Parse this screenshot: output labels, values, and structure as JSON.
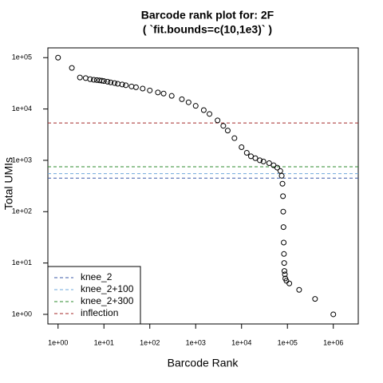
{
  "chart_data": {
    "type": "scatter",
    "title": "Barcode rank plot for: 2F",
    "subtitle": "( `fit.bounds=c(10,1e3)` )",
    "x_label": "Barcode Rank",
    "y_label": "Total UMIs",
    "log_x": true,
    "log_y": true,
    "color": "#000000",
    "x": [
      1,
      2,
      3,
      4,
      5,
      6,
      7,
      8,
      9,
      10,
      12,
      14,
      17,
      20,
      25,
      30,
      40,
      50,
      70,
      100,
      150,
      200,
      300,
      500,
      700,
      1000,
      1500,
      2000,
      3000,
      4000,
      5000,
      7000,
      10000,
      13000,
      16000,
      20000,
      25000,
      30000,
      40000,
      50000,
      60000,
      70000,
      75000,
      78000,
      80000,
      81000,
      82000,
      83000,
      84000,
      85000,
      86000,
      88000,
      90000,
      95000,
      110000,
      180000,
      400000,
      1000000
    ],
    "y": [
      100000,
      63000,
      41000,
      40000,
      38000,
      37000,
      36500,
      36000,
      35500,
      35000,
      34000,
      33000,
      32000,
      31000,
      30000,
      29000,
      27500,
      26500,
      25000,
      23000,
      21000,
      20000,
      18000,
      15500,
      13500,
      11500,
      9500,
      8000,
      6000,
      4700,
      3800,
      2700,
      1800,
      1400,
      1200,
      1100,
      1000,
      950,
      880,
      800,
      720,
      620,
      500,
      350,
      200,
      100,
      50,
      25,
      15,
      10,
      7,
      6,
      5,
      4.5,
      4,
      3,
      2,
      1
    ],
    "xlim": [
      0.6,
      3500000
    ],
    "ylim": [
      0.65,
      155000
    ],
    "xticks": [
      {
        "value": 1,
        "label": "1e+00"
      },
      {
        "value": 10,
        "label": "1e+01"
      },
      {
        "value": 100,
        "label": "1e+02"
      },
      {
        "value": 1000,
        "label": "1e+03"
      },
      {
        "value": 10000,
        "label": "1e+04"
      },
      {
        "value": 100000,
        "label": "1e+05"
      },
      {
        "value": 1000000,
        "label": "1e+06"
      }
    ],
    "yticks": [
      {
        "value": 1,
        "label": "1e+00"
      },
      {
        "value": 10,
        "label": "1e+01"
      },
      {
        "value": 100,
        "label": "1e+02"
      },
      {
        "value": 1000,
        "label": "1e+03"
      },
      {
        "value": 10000,
        "label": "1e+04"
      },
      {
        "value": 100000,
        "label": "1e+05"
      }
    ],
    "hlines": [
      {
        "name": "knee_2",
        "color": "#3d5ba9",
        "value": 450
      },
      {
        "name": "knee_2+100",
        "color": "#6fa8dc",
        "value": 550
      },
      {
        "name": "knee_2+300",
        "color": "#2e8b2e",
        "value": 750
      },
      {
        "name": "inflection",
        "color": "#a52a2a",
        "value": 5330
      }
    ],
    "legend": "bottomleft"
  }
}
